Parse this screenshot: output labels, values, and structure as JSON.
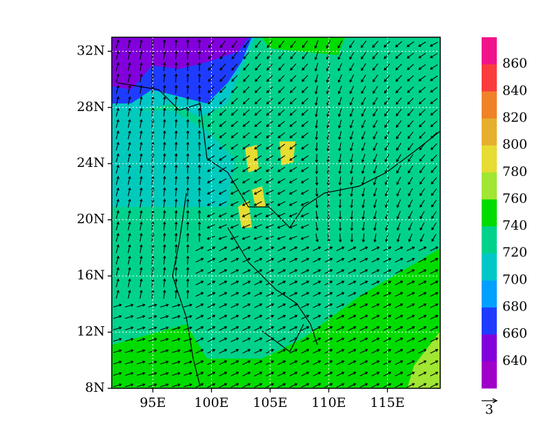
{
  "map": {
    "lon_range": [
      91.5,
      119.5
    ],
    "lat_range": [
      8,
      33
    ],
    "lat_ticks": [
      {
        "value": 8,
        "label": "8N"
      },
      {
        "value": 12,
        "label": "12N"
      },
      {
        "value": 16,
        "label": "16N"
      },
      {
        "value": 20,
        "label": "20N"
      },
      {
        "value": 24,
        "label": "24N"
      },
      {
        "value": 28,
        "label": "28N"
      },
      {
        "value": 32,
        "label": "32N"
      }
    ],
    "lon_ticks": [
      {
        "value": 95,
        "label": "95E"
      },
      {
        "value": 100,
        "label": "100E"
      },
      {
        "value": 105,
        "label": "105E"
      },
      {
        "value": 110,
        "label": "110E"
      },
      {
        "value": 115,
        "label": "115E"
      }
    ],
    "grid": true
  },
  "colorbar": {
    "levels": [
      640,
      660,
      680,
      700,
      720,
      740,
      760,
      780,
      800,
      820,
      840,
      860
    ],
    "colors": [
      "#a000c8",
      "#8200dc",
      "#1e3cff",
      "#00a0ff",
      "#00c8c8",
      "#00d28c",
      "#00dc00",
      "#a0e632",
      "#e6dc32",
      "#e6af2d",
      "#f08228",
      "#fa3c3c",
      "#f0148c"
    ]
  },
  "reference_vector": {
    "label": "3"
  }
}
